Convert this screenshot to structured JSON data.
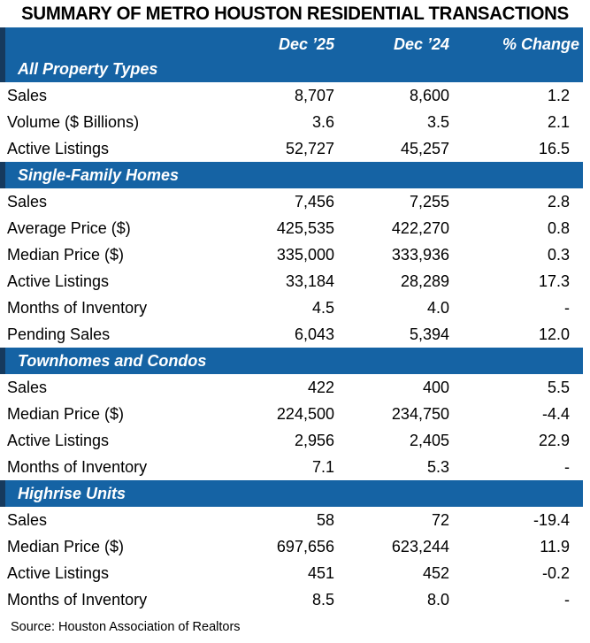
{
  "chart_data": {
    "type": "table",
    "title": "SUMMARY OF METRO HOUSTON RESIDENTIAL TRANSACTIONS",
    "columns": [
      "Dec ’25",
      "Dec ’24",
      "% Change"
    ],
    "sections": [
      {
        "label": "All Property Types",
        "rows": [
          {
            "label": "Sales",
            "dec25": "8,707",
            "dec24": "8,600",
            "change": "1.2"
          },
          {
            "label": "Volume ($ Billions)",
            "dec25": "3.6",
            "dec24": "3.5",
            "change": "2.1"
          },
          {
            "label": "Active Listings",
            "dec25": "52,727",
            "dec24": "45,257",
            "change": "16.5"
          }
        ]
      },
      {
        "label": "Single-Family Homes",
        "rows": [
          {
            "label": "Sales",
            "dec25": "7,456",
            "dec24": "7,255",
            "change": "2.8"
          },
          {
            "label": "Average Price ($)",
            "dec25": "425,535",
            "dec24": "422,270",
            "change": "0.8"
          },
          {
            "label": "Median Price ($)",
            "dec25": "335,000",
            "dec24": "333,936",
            "change": "0.3"
          },
          {
            "label": "Active Listings",
            "dec25": "33,184",
            "dec24": "28,289",
            "change": "17.3"
          },
          {
            "label": "Months of Inventory",
            "dec25": "4.5",
            "dec24": "4.0",
            "change": "-"
          },
          {
            "label": "Pending Sales",
            "dec25": "6,043",
            "dec24": "5,394",
            "change": "12.0"
          }
        ]
      },
      {
        "label": "Townhomes and Condos",
        "rows": [
          {
            "label": "Sales",
            "dec25": "422",
            "dec24": "400",
            "change": "5.5"
          },
          {
            "label": "Median Price ($)",
            "dec25": "224,500",
            "dec24": "234,750",
            "change": "-4.4"
          },
          {
            "label": "Active Listings",
            "dec25": "2,956",
            "dec24": "2,405",
            "change": "22.9"
          },
          {
            "label": "Months of Inventory",
            "dec25": "7.1",
            "dec24": "5.3",
            "change": "-"
          }
        ]
      },
      {
        "label": "Highrise Units",
        "rows": [
          {
            "label": "Sales",
            "dec25": "58",
            "dec24": "72",
            "change": "-19.4"
          },
          {
            "label": "Median Price ($)",
            "dec25": "697,656",
            "dec24": "623,244",
            "change": "11.9"
          },
          {
            "label": "Active Listings",
            "dec25": "451",
            "dec24": "452",
            "change": "-0.2"
          },
          {
            "label": "Months of Inventory",
            "dec25": "8.5",
            "dec24": "8.0",
            "change": "-"
          }
        ]
      }
    ],
    "source": "Source: Houston Association of Realtors",
    "colors": {
      "band_blue": "#1563A4",
      "band_navy_accent": "#163A5E",
      "band_text": "#FFFFFF",
      "body_text": "#000000"
    },
    "layout": {
      "grid": "off",
      "header_style": "blue band, white bold italic"
    }
  }
}
